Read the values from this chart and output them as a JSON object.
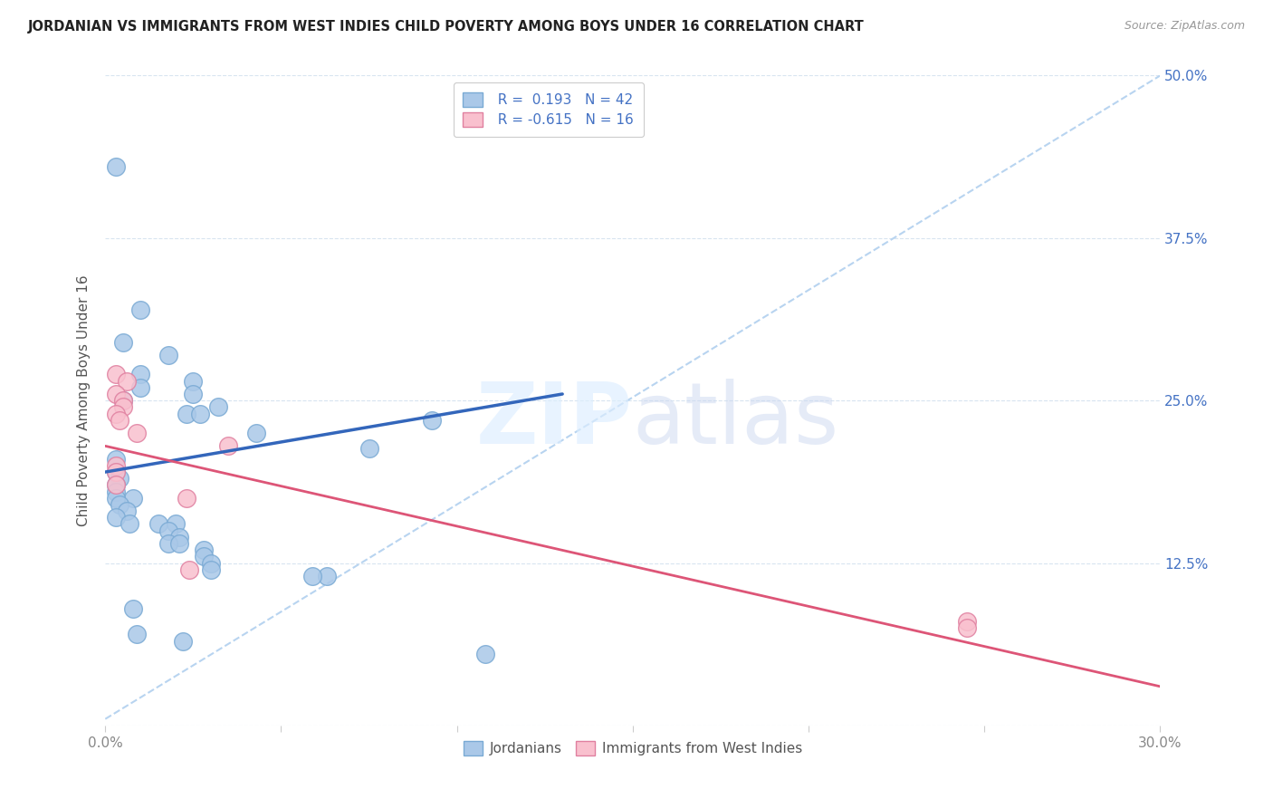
{
  "title": "JORDANIAN VS IMMIGRANTS FROM WEST INDIES CHILD POVERTY AMONG BOYS UNDER 16 CORRELATION CHART",
  "source": "Source: ZipAtlas.com",
  "ylabel": "Child Poverty Among Boys Under 16",
  "xlim": [
    0.0,
    0.3
  ],
  "ylim": [
    0.0,
    0.5
  ],
  "x_ticks": [
    0.0,
    0.05,
    0.1,
    0.15,
    0.2,
    0.25,
    0.3
  ],
  "x_tick_labels": [
    "0.0%",
    "",
    "",
    "",
    "",
    "",
    "30.0%"
  ],
  "y_ticks": [
    0.0,
    0.125,
    0.25,
    0.375,
    0.5
  ],
  "y_tick_labels_right": [
    "",
    "12.5%",
    "25.0%",
    "37.5%",
    "50.0%"
  ],
  "legend_label_jordanians": "Jordanians",
  "legend_label_westindies": "Immigrants from West Indies",
  "blue_scatter_color_face": "#aac8e8",
  "blue_scatter_color_edge": "#7aaad4",
  "pink_scatter_color_face": "#f9c0ce",
  "pink_scatter_color_edge": "#e080a0",
  "trend_blue_color": "#3366bb",
  "trend_pink_color": "#dd5577",
  "trend_dashed_color": "#b8d4f0",
  "blue_scatter": [
    [
      0.003,
      0.43
    ],
    [
      0.01,
      0.32
    ],
    [
      0.005,
      0.295
    ],
    [
      0.018,
      0.285
    ],
    [
      0.01,
      0.27
    ],
    [
      0.025,
      0.265
    ],
    [
      0.01,
      0.26
    ],
    [
      0.025,
      0.255
    ],
    [
      0.005,
      0.25
    ],
    [
      0.032,
      0.245
    ],
    [
      0.023,
      0.24
    ],
    [
      0.027,
      0.24
    ],
    [
      0.093,
      0.235
    ],
    [
      0.043,
      0.225
    ],
    [
      0.075,
      0.213
    ],
    [
      0.003,
      0.205
    ],
    [
      0.003,
      0.195
    ],
    [
      0.004,
      0.19
    ],
    [
      0.003,
      0.185
    ],
    [
      0.003,
      0.18
    ],
    [
      0.008,
      0.175
    ],
    [
      0.003,
      0.175
    ],
    [
      0.004,
      0.17
    ],
    [
      0.006,
      0.165
    ],
    [
      0.003,
      0.16
    ],
    [
      0.007,
      0.155
    ],
    [
      0.015,
      0.155
    ],
    [
      0.02,
      0.155
    ],
    [
      0.018,
      0.15
    ],
    [
      0.021,
      0.145
    ],
    [
      0.018,
      0.14
    ],
    [
      0.021,
      0.14
    ],
    [
      0.028,
      0.135
    ],
    [
      0.028,
      0.13
    ],
    [
      0.03,
      0.125
    ],
    [
      0.03,
      0.12
    ],
    [
      0.063,
      0.115
    ],
    [
      0.059,
      0.115
    ],
    [
      0.008,
      0.09
    ],
    [
      0.009,
      0.07
    ],
    [
      0.022,
      0.065
    ],
    [
      0.108,
      0.055
    ]
  ],
  "pink_scatter": [
    [
      0.003,
      0.27
    ],
    [
      0.006,
      0.265
    ],
    [
      0.003,
      0.255
    ],
    [
      0.005,
      0.25
    ],
    [
      0.005,
      0.245
    ],
    [
      0.003,
      0.24
    ],
    [
      0.004,
      0.235
    ],
    [
      0.009,
      0.225
    ],
    [
      0.035,
      0.215
    ],
    [
      0.003,
      0.2
    ],
    [
      0.003,
      0.195
    ],
    [
      0.003,
      0.185
    ],
    [
      0.023,
      0.175
    ],
    [
      0.024,
      0.12
    ],
    [
      0.245,
      0.08
    ],
    [
      0.245,
      0.075
    ]
  ],
  "blue_trend_x": [
    0.0,
    0.13
  ],
  "blue_trend_y": [
    0.195,
    0.255
  ],
  "pink_trend_x": [
    0.0,
    0.3
  ],
  "pink_trend_y": [
    0.215,
    0.03
  ],
  "dashed_trend_x": [
    0.0,
    0.3
  ],
  "dashed_trend_y": [
    0.005,
    0.5
  ],
  "legend_r1": "R =  0.193   N = 42",
  "legend_r2": "R = -0.615   N = 16",
  "legend_color": "#4472c4",
  "watermark_zip": "ZIP",
  "watermark_atlas": "atlas",
  "background_color": "#ffffff",
  "grid_color": "#d8e4f0",
  "title_color": "#222222",
  "source_color": "#999999",
  "ylabel_color": "#555555",
  "tick_label_color": "#888888",
  "right_tick_color": "#4472c4"
}
